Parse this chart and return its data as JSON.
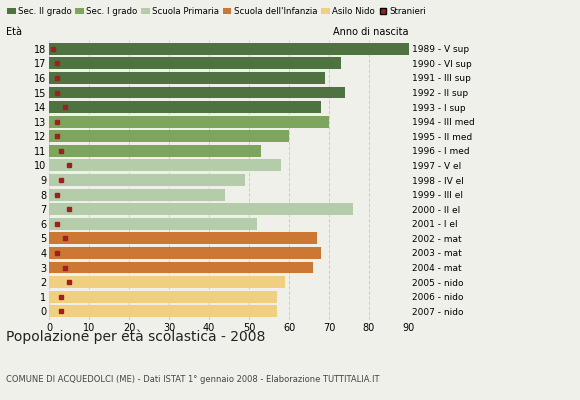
{
  "ages": [
    18,
    17,
    16,
    15,
    14,
    13,
    12,
    11,
    10,
    9,
    8,
    7,
    6,
    5,
    4,
    3,
    2,
    1,
    0
  ],
  "bar_values": [
    90,
    73,
    69,
    74,
    68,
    70,
    60,
    53,
    58,
    49,
    44,
    76,
    52,
    67,
    68,
    66,
    59,
    57,
    57
  ],
  "stranieri_values": [
    1,
    2,
    2,
    2,
    4,
    2,
    2,
    3,
    5,
    3,
    2,
    5,
    2,
    4,
    2,
    4,
    5,
    3,
    3
  ],
  "anno_nascita": [
    "1989 - V sup",
    "1990 - VI sup",
    "1991 - III sup",
    "1992 - II sup",
    "1993 - I sup",
    "1994 - III med",
    "1995 - II med",
    "1996 - I med",
    "1997 - V el",
    "1998 - IV el",
    "1999 - III el",
    "2000 - II el",
    "2001 - I el",
    "2002 - mat",
    "2003 - mat",
    "2004 - mat",
    "2005 - nido",
    "2006 - nido",
    "2007 - nido"
  ],
  "bar_colors": [
    "#4e7340",
    "#4e7340",
    "#4e7340",
    "#4e7340",
    "#4e7340",
    "#7da55e",
    "#7da55e",
    "#7da55e",
    "#b5ccaa",
    "#b5ccaa",
    "#b5ccaa",
    "#b5ccaa",
    "#b5ccaa",
    "#cc7733",
    "#cc7733",
    "#cc7733",
    "#f0d080",
    "#f0d080",
    "#f0d080"
  ],
  "legend_colors": [
    "#4e7340",
    "#7da55e",
    "#b5ccaa",
    "#cc7733",
    "#f0d080",
    "#a02020"
  ],
  "legend_labels": [
    "Sec. II grado",
    "Sec. I grado",
    "Scuola Primaria",
    "Scuola dell'Infanzia",
    "Asilo Nido",
    "Stranieri"
  ],
  "title": "Popolazione per età scolastica - 2008",
  "subtitle": "COMUNE DI ACQUEDOLCI (ME) - Dati ISTAT 1° gennaio 2008 - Elaborazione TUTTITALIA.IT",
  "ylabel_eta": "Età",
  "ylabel_anno": "Anno di nascita",
  "xlim": [
    0,
    90
  ],
  "background_color": "#f0f0eb",
  "grid_color": "#cccccc"
}
